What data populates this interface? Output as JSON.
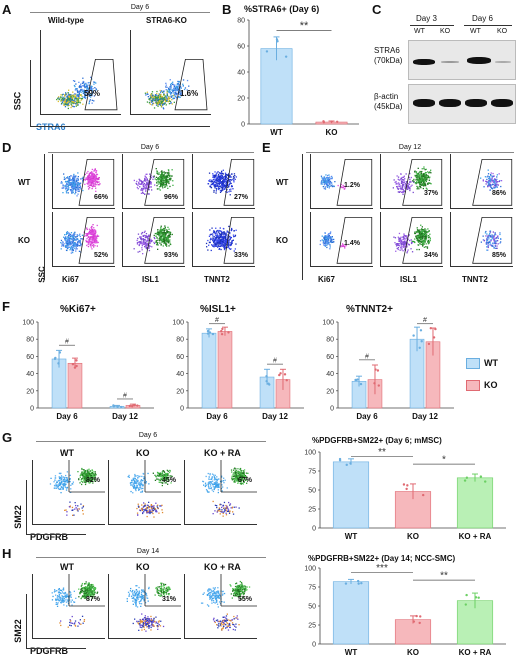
{
  "panels": {
    "A": "A",
    "B": "B",
    "C": "C",
    "D": "D",
    "E": "E",
    "F": "F",
    "G": "G",
    "H": "H"
  },
  "panelA": {
    "day": "Day 6",
    "titles": [
      "Wild-type",
      "STRA6-KO"
    ],
    "pcts": [
      "59%",
      "1.6%"
    ],
    "ylabel": "SSC",
    "xlabel": "STRA6",
    "yticks": [
      "250K",
      "200K",
      "150K",
      "100K",
      "50K",
      "0"
    ],
    "xticks": [
      "0",
      "10³",
      "10⁴",
      "10⁵"
    ]
  },
  "panelB": {
    "title": "%STRA6+ (Day 6)",
    "sig": "**",
    "yticks": [
      "80",
      "60",
      "40",
      "20",
      "0"
    ]
  },
  "panelC": {
    "days": [
      "Day 3",
      "Day 6"
    ],
    "lanes": [
      "WT",
      "KO",
      "WT",
      "KO"
    ],
    "labels": [
      "STRA6",
      "(70kDa)",
      "β-actin",
      "(45kDa)"
    ]
  },
  "panelD": {
    "day": "Day 6",
    "rows": [
      "WT",
      "KO"
    ],
    "markers": [
      "Ki67",
      "ISL1",
      "TNNT2"
    ],
    "pcts": [
      [
        "66%",
        "96%",
        "27%"
      ],
      [
        "52%",
        "93%",
        "33%"
      ]
    ],
    "ylabel": "SSC"
  },
  "panelE": {
    "day": "Day 12",
    "rows": [
      "WT",
      "KO"
    ],
    "markers": [
      "Ki67",
      "ISL1",
      "TNNT2"
    ],
    "pcts": [
      [
        "1.2%",
        "37%",
        "86%"
      ],
      [
        "1.4%",
        "34%",
        "85%"
      ]
    ]
  },
  "panelF": {
    "titles": [
      "%Ki67+",
      "%ISL1+",
      "%TNNT2+"
    ],
    "xcats": [
      "Day 6",
      "Day 12"
    ],
    "sig": "#",
    "legend": [
      "WT",
      "KO"
    ],
    "yticks": [
      "100",
      "80",
      "60",
      "40",
      "20",
      "0"
    ]
  },
  "panelG": {
    "day": "Day 6",
    "titles": [
      "WT",
      "KO",
      "KO + RA"
    ],
    "pcts": [
      "82%",
      "45%",
      "67%"
    ],
    "ylabel": "SM22",
    "xlabel": "PDGFRB",
    "chartTitle": "%PDGFRB+SM22+ (Day 6; mMSC)",
    "sig": [
      "**",
      "*"
    ],
    "yticks": [
      "100",
      "75",
      "50",
      "25",
      "0"
    ]
  },
  "panelH": {
    "day": "Day 14",
    "titles": [
      "WT",
      "KO",
      "KO + RA"
    ],
    "pcts": [
      "87%",
      "31%",
      "55%"
    ],
    "ylabel": "SM22",
    "xlabel": "PDGFRB",
    "chartTitle": "%PDGFRB+SM22+ (Day 14; NCC-SMC)",
    "sig": [
      "***",
      "**"
    ],
    "yticks": [
      "100",
      "75",
      "50",
      "25",
      "0"
    ]
  },
  "colors": {
    "wt": "#bfe0f8",
    "wtEdge": "#6aaee0",
    "ko": "#f6b8bc",
    "koEdge": "#e06a72",
    "ra": "#b9f0b5",
    "raEdge": "#6cd064",
    "sig": "#555"
  },
  "chart_data": [
    {
      "type": "bar",
      "id": "B",
      "title": "%STRA6+ (Day 6)",
      "categories": [
        "WT",
        "KO"
      ],
      "values": [
        58,
        1.5
      ],
      "errors": [
        9,
        0.8
      ],
      "ylim": [
        0,
        80
      ],
      "colors": [
        "#bfe0f8",
        "#f6b8bc"
      ]
    },
    {
      "type": "bar",
      "id": "F1",
      "title": "%Ki67+",
      "categories": [
        "Day 6",
        "Day 12"
      ],
      "series": [
        {
          "name": "WT",
          "values": [
            57,
            2
          ]
        },
        {
          "name": "KO",
          "values": [
            52,
            3
          ]
        }
      ],
      "errors": [
        [
          10,
          1
        ],
        [
          6,
          1.5
        ]
      ],
      "ylim": [
        0,
        100
      ]
    },
    {
      "type": "bar",
      "id": "F2",
      "title": "%ISL1+",
      "categories": [
        "Day 6",
        "Day 12"
      ],
      "series": [
        {
          "name": "WT",
          "values": [
            87,
            36
          ]
        },
        {
          "name": "KO",
          "values": [
            89,
            33
          ]
        }
      ],
      "errors": [
        [
          5,
          9
        ],
        [
          5,
          12
        ]
      ],
      "ylim": [
        0,
        100
      ]
    },
    {
      "type": "bar",
      "id": "F3",
      "title": "%TNNT2+",
      "categories": [
        "Day 6",
        "Day 12"
      ],
      "series": [
        {
          "name": "WT",
          "values": [
            31,
            80
          ]
        },
        {
          "name": "KO",
          "values": [
            33,
            77
          ]
        }
      ],
      "errors": [
        [
          6,
          14
        ],
        [
          17,
          16
        ]
      ],
      "ylim": [
        0,
        100
      ]
    },
    {
      "type": "bar",
      "id": "G",
      "title": "%PDGFRB+SM22+ (Day 6; mMSC)",
      "categories": [
        "WT",
        "KO",
        "KO + RA"
      ],
      "values": [
        87,
        48,
        66
      ],
      "errors": [
        4,
        10,
        5
      ],
      "ylim": [
        0,
        100
      ]
    },
    {
      "type": "bar",
      "id": "H",
      "title": "%PDGFRB+SM22+ (Day 14; NCC-SMC)",
      "categories": [
        "WT",
        "KO",
        "KO + RA"
      ],
      "values": [
        82,
        32,
        57
      ],
      "errors": [
        3,
        5,
        10
      ],
      "ylim": [
        0,
        100
      ]
    }
  ]
}
